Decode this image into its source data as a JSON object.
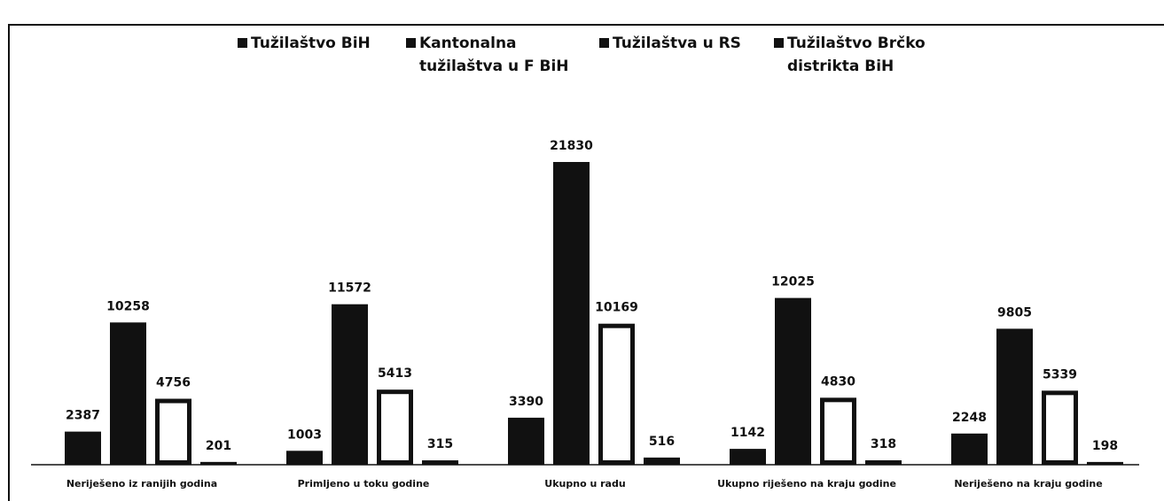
{
  "chart_data": {
    "type": "bar",
    "categories": [
      "Neriješeno iz ranijih godina",
      "Primljeno u toku godine",
      "Ukupno u radu",
      "Ukupno riješeno na kraju godine",
      "Neriješeno na kraju godine"
    ],
    "series": [
      {
        "name": "Tužilaštvo BiH",
        "color": "#111111",
        "fill": "#111111",
        "values": [
          2387,
          1003,
          3390,
          1142,
          2248
        ]
      },
      {
        "name": "Kantonalna tužilaštva u F BiH",
        "color": "#111111",
        "fill": "#111111",
        "values": [
          10258,
          11572,
          21830,
          12025,
          9805
        ]
      },
      {
        "name": "Tužilaštva u RS",
        "color": "#111111",
        "fill": "#ffffff",
        "values": [
          4756,
          5413,
          10169,
          4830,
          5339
        ]
      },
      {
        "name": "Tužilaštvo Brčko distrikta BiH",
        "color": "#111111",
        "fill": "#111111",
        "values": [
          201,
          315,
          516,
          318,
          198
        ]
      }
    ]
  }
}
